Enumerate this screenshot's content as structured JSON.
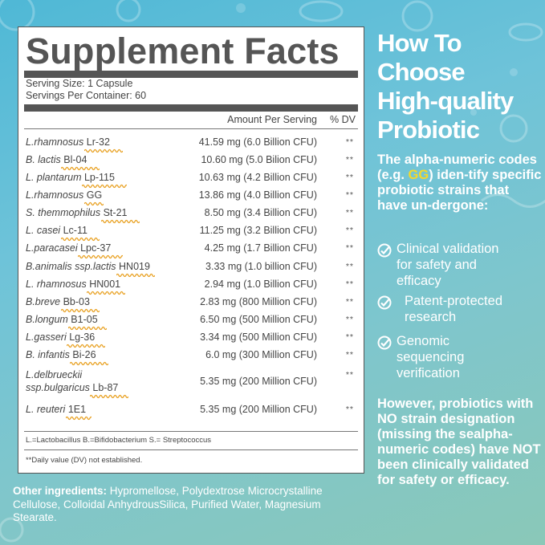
{
  "panel": {
    "title": "Supplement Facts",
    "serving_size": "Serving Size: 1 Capsule",
    "servings_per_container": "Servings Per Container: 60",
    "col_amount": "Amount Per Serving",
    "col_dv": "% DV",
    "rows": [
      {
        "name": "L.rhamnosus",
        "code": "Lr-32",
        "amount": "41.59 mg (6.0 Billion CFU)",
        "dv": "**"
      },
      {
        "name": "B. lactis",
        "code": "Bl-04",
        "amount": "10.60 mg (5.0 Bilion CFU)",
        "dv": "**"
      },
      {
        "name": "L. plantarum",
        "code": "Lp-115",
        "amount": "10.63 mg (4.2 Billion CFU)",
        "dv": "**"
      },
      {
        "name": "L.rhamnosus",
        "code": "GG",
        "amount": "13.86 mg (4.0 Billion CFU)",
        "dv": "**"
      },
      {
        "name": "S. themmophilus",
        "code": "St-21",
        "amount": "8.50 mg (3.4 Billion CFU)",
        "dv": "**"
      },
      {
        "name": "L. casei",
        "code": "Lc-11",
        "amount": "11.25 mg (3.2 Billion CFU)",
        "dv": "**"
      },
      {
        "name": "L.paracasei",
        "code": "Lpc-37",
        "amount": "4.25 mg (1.7 Billion CFU)",
        "dv": "**"
      },
      {
        "name": "B.animalis ssp.lactis",
        "code": "HN019",
        "amount": "3.33 mg (1.0 billion CFU)",
        "dv": "**"
      },
      {
        "name": "L. rhamnosus",
        "code": "HN001",
        "amount": "2.94 mg (1.0 Billion CFU)",
        "dv": "**"
      },
      {
        "name": "B.breve",
        "code": "Bb-03",
        "amount": "2.83 mg (800 Million CFU)",
        "dv": "**"
      },
      {
        "name": "B.longum",
        "code": "B1-05",
        "amount": "6.50 mg (500 Million CFU)",
        "dv": "**"
      },
      {
        "name": "L.gasseri",
        "code": "Lg-36",
        "amount": "3.34 mg (500 Million CFU)",
        "dv": "**"
      },
      {
        "name": "B. infantis",
        "code": "Bi-26",
        "amount": "6.0 mg (300 Million CFU)",
        "dv": "**"
      },
      {
        "name": "L.delbrueckii",
        "name2": "ssp.bulgaricus",
        "code": "Lb-87",
        "amount": "5.35 mg (200 Million CFU)",
        "dv": "**"
      },
      {
        "name": "L. reuteri",
        "code": "1E1",
        "amount": "5.35 mg (200 Million CFU)",
        "dv": "**"
      }
    ],
    "abbreviations": "L.=Lactobacillus B.=Bifidobacterium S.= Streptococcus",
    "dv_note": "**Daily value (DV) not established."
  },
  "ingredients": {
    "label": "Other ingredients:",
    "text": " Hypromellose, Polydextrose Microcrystalline Cellulose, Colloidal AnhydrousSilica, Purified Water, Magnesium Stearate."
  },
  "sidebar": {
    "title_lines": [
      "How To",
      "Choose",
      "High-quality",
      "Probiotic"
    ],
    "intro_a": "The alpha-numeric codes (e.g. ",
    "intro_hl": "GG",
    "intro_b": ") iden-tify specific probiotic strains that have un-dergone:",
    "checks": [
      [
        "Clinical validation",
        "for safety and",
        "efficacy"
      ],
      [
        "Patent-protected",
        "research"
      ],
      [
        "Genomic",
        "sequencing",
        "verification"
      ]
    ],
    "conclusion": "However, probiotics with NO strain designation (missing the sealpha-numeric codes) have NOT been clinically validated for safety or efficacy."
  },
  "colors": {
    "highlight": "#f6d928",
    "squiggle": "#e8a020",
    "panel_text": "#444444",
    "background": "#6ec3d9"
  }
}
